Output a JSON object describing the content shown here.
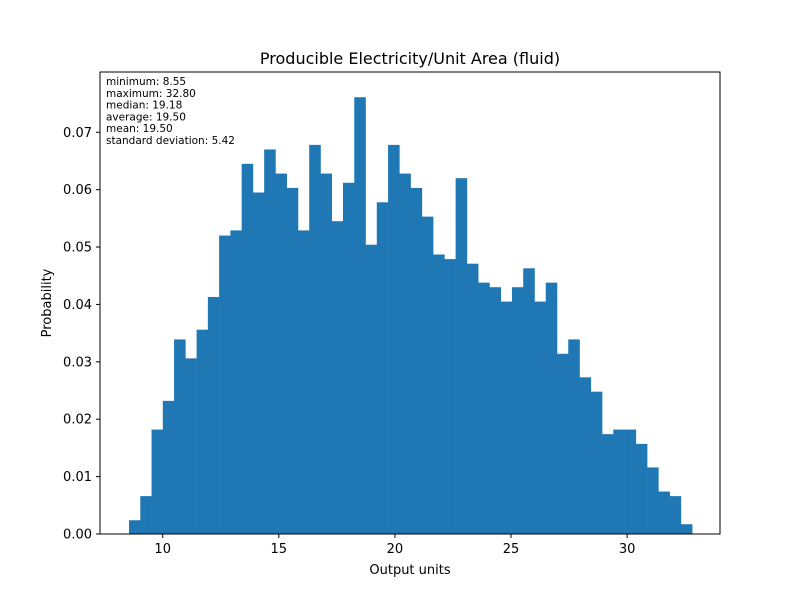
{
  "chart_data": {
    "type": "bar",
    "title": "Producible Electricity/Unit Area (fluid)",
    "xlabel": "Output units",
    "ylabel": "Probability",
    "xlim": [
      7.3,
      34.0
    ],
    "ylim": [
      0,
      0.0805
    ],
    "xticks": [
      10,
      15,
      20,
      25,
      30
    ],
    "xtick_labels": [
      "10",
      "15",
      "20",
      "25",
      "30"
    ],
    "yticks": [
      0,
      0.01,
      0.02,
      0.03,
      0.04,
      0.05,
      0.06,
      0.07
    ],
    "ytick_labels": [
      "0.00",
      "0.01",
      "0.02",
      "0.03",
      "0.04",
      "0.05",
      "0.06",
      "0.07"
    ],
    "bin_start": 8.55,
    "bin_width": 0.485,
    "values": [
      0.0024,
      0.0066,
      0.0182,
      0.0232,
      0.0339,
      0.0306,
      0.0356,
      0.0413,
      0.052,
      0.0529,
      0.0645,
      0.0595,
      0.067,
      0.0628,
      0.0603,
      0.0529,
      0.0678,
      0.0628,
      0.0545,
      0.0612,
      0.0761,
      0.0504,
      0.0578,
      0.0678,
      0.0628,
      0.0603,
      0.0553,
      0.0487,
      0.0479,
      0.062,
      0.0471,
      0.0438,
      0.043,
      0.0405,
      0.043,
      0.0463,
      0.0405,
      0.0438,
      0.0314,
      0.0339,
      0.0273,
      0.0248,
      0.0174,
      0.0182,
      0.0182,
      0.0157,
      0.0116,
      0.0074,
      0.0066,
      0.0017
    ],
    "bar_color": "#1f77b4",
    "grid": false,
    "annotation_lines": [
      "minimum: 8.55",
      "maximum: 32.80",
      "median: 19.18",
      "average: 19.50",
      "mean: 19.50",
      "standard deviation: 5.42"
    ]
  }
}
